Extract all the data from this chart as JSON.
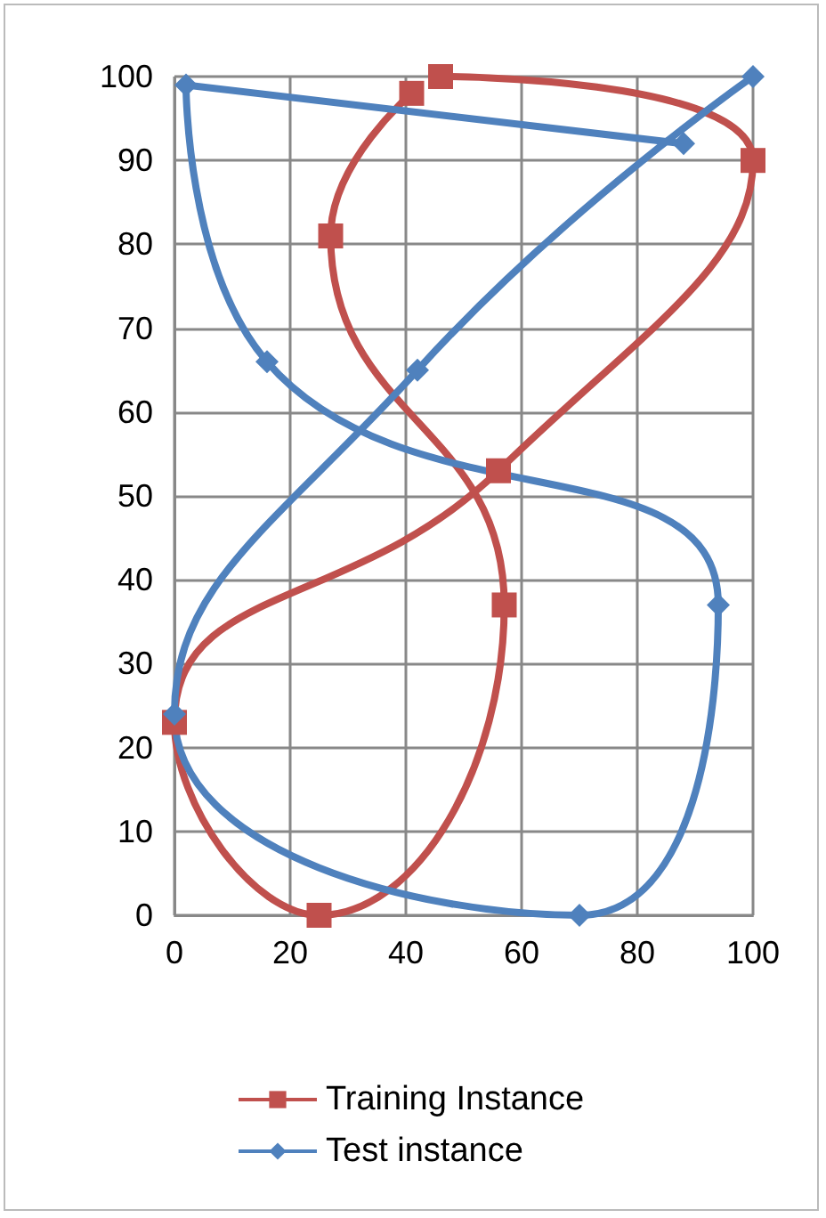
{
  "chart_data": {
    "type": "line",
    "series": [
      {
        "name": "Training Instance",
        "color": "#c0504d",
        "marker": "square",
        "x": [
          46,
          100,
          56,
          0,
          25,
          57,
          27,
          41
        ],
        "values": [
          100,
          90,
          53,
          23,
          0,
          37,
          81,
          98
        ]
      },
      {
        "name": "Test instance",
        "color": "#4f81bd",
        "marker": "diamond",
        "x": [
          88,
          2,
          16,
          94,
          70,
          0,
          42,
          100
        ],
        "values": [
          92,
          99,
          66,
          37,
          0,
          24,
          65,
          100
        ]
      }
    ],
    "xlim": [
      0,
      100
    ],
    "xticks": [
      0,
      20,
      40,
      60,
      80,
      100
    ],
    "ylim": [
      0,
      100
    ],
    "yticks": [
      0,
      10,
      20,
      30,
      40,
      50,
      60,
      70,
      80,
      90,
      100
    ],
    "grid": true,
    "legend": "bottom"
  }
}
